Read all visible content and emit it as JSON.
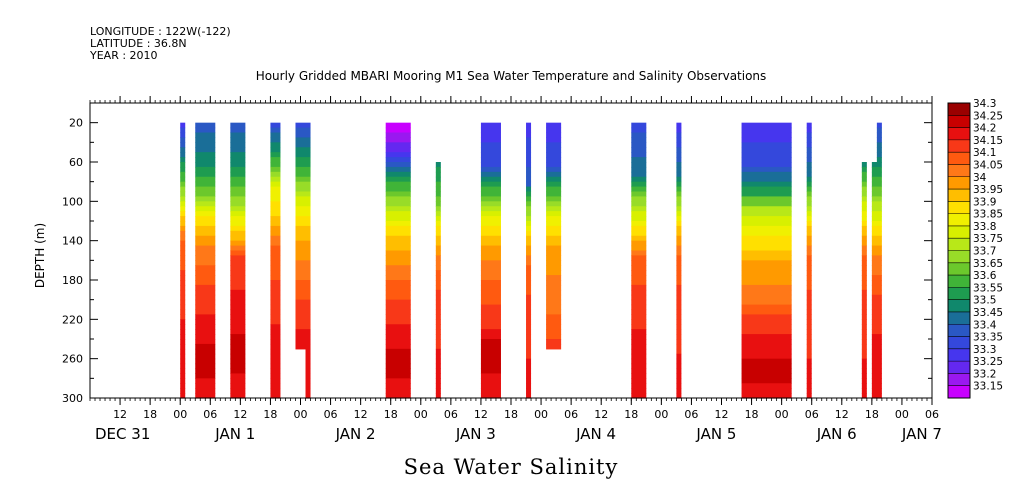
{
  "header": {
    "longitude": "LONGITUDE : 122W(-122)",
    "latitude": "LATITUDE : 36.8N",
    "year": "YEAR : 2010"
  },
  "chart_data": {
    "type": "heatmap",
    "title": "Hourly Gridded MBARI Mooring M1 Sea Water Temperature and Salinity Observations",
    "xlabel": "Sea Water Salinity",
    "ylabel": "DEPTH (m)",
    "ylim": [
      300,
      0
    ],
    "y_ticks": [
      20,
      60,
      100,
      140,
      180,
      220,
      260,
      300
    ],
    "x_range_hours": [
      -18,
      150
    ],
    "hour_ticks": [
      {
        "t": -12,
        "label": "12"
      },
      {
        "t": -6,
        "label": "18"
      },
      {
        "t": 0,
        "label": "00"
      },
      {
        "t": 6,
        "label": "06"
      },
      {
        "t": 12,
        "label": "12"
      },
      {
        "t": 18,
        "label": "18"
      },
      {
        "t": 24,
        "label": "00"
      },
      {
        "t": 30,
        "label": "06"
      },
      {
        "t": 36,
        "label": "12"
      },
      {
        "t": 42,
        "label": "18"
      },
      {
        "t": 48,
        "label": "00"
      },
      {
        "t": 54,
        "label": "06"
      },
      {
        "t": 60,
        "label": "12"
      },
      {
        "t": 66,
        "label": "18"
      },
      {
        "t": 72,
        "label": "00"
      },
      {
        "t": 78,
        "label": "06"
      },
      {
        "t": 84,
        "label": "12"
      },
      {
        "t": 90,
        "label": "18"
      },
      {
        "t": 96,
        "label": "00"
      },
      {
        "t": 102,
        "label": "06"
      },
      {
        "t": 108,
        "label": "12"
      },
      {
        "t": 114,
        "label": "18"
      },
      {
        "t": 120,
        "label": "00"
      },
      {
        "t": 126,
        "label": "06"
      },
      {
        "t": 132,
        "label": "12"
      },
      {
        "t": 138,
        "label": "18"
      },
      {
        "t": 144,
        "label": "00"
      },
      {
        "t": 150,
        "label": "06"
      }
    ],
    "day_labels": [
      {
        "t": -18,
        "label": "DEC 31"
      },
      {
        "t": 6,
        "label": "JAN  1"
      },
      {
        "t": 30,
        "label": "JAN  2"
      },
      {
        "t": 54,
        "label": "JAN  3"
      },
      {
        "t": 78,
        "label": "JAN  4"
      },
      {
        "t": 102,
        "label": "JAN  5"
      },
      {
        "t": 126,
        "label": "JAN  6"
      },
      {
        "t": 143,
        "label": "JAN  7"
      }
    ],
    "colorbar": {
      "levels": [
        "34.3",
        "34.25",
        "34.2",
        "34.15",
        "34.1",
        "34.05",
        "34",
        "33.95",
        "33.9",
        "33.85",
        "33.8",
        "33.75",
        "33.7",
        "33.65",
        "33.6",
        "33.55",
        "33.5",
        "33.45",
        "33.4",
        "33.35",
        "33.3",
        "33.25",
        "33.2",
        "33.15"
      ],
      "colors": [
        "#9a0000",
        "#c80000",
        "#e81010",
        "#f83818",
        "#ff5a10",
        "#ff7818",
        "#ff9a00",
        "#ffbe00",
        "#ffe000",
        "#f0f000",
        "#d8f000",
        "#b8e818",
        "#98dc28",
        "#6cc82c",
        "#40b438",
        "#1e9c50",
        "#10886c",
        "#1a6e98",
        "#2a58c4",
        "#3448dc",
        "#4636ee",
        "#6428f0",
        "#9a18f0",
        "#c800ff"
      ]
    },
    "columns": [
      {
        "t0": 0,
        "t1": 1,
        "top": 20,
        "bottom": 300,
        "profile": [
          [
            20,
            33.3
          ],
          [
            50,
            33.45
          ],
          [
            90,
            33.7
          ],
          [
            120,
            33.95
          ],
          [
            145,
            34.1
          ],
          [
            200,
            34.15
          ],
          [
            240,
            34.2
          ],
          [
            300,
            34.2
          ]
        ]
      },
      {
        "t0": 3,
        "t1": 7,
        "top": 20,
        "bottom": 300,
        "profile": [
          [
            20,
            33.4
          ],
          [
            60,
            33.5
          ],
          [
            90,
            33.65
          ],
          [
            120,
            33.9
          ],
          [
            150,
            34.05
          ],
          [
            200,
            34.15
          ],
          [
            230,
            34.2
          ],
          [
            260,
            34.25
          ],
          [
            300,
            34.2
          ]
        ]
      },
      {
        "t0": 10,
        "t1": 13,
        "top": 20,
        "bottom": 300,
        "profile": [
          [
            20,
            33.4
          ],
          [
            60,
            33.5
          ],
          [
            100,
            33.7
          ],
          [
            135,
            33.95
          ],
          [
            160,
            34.15
          ],
          [
            220,
            34.2
          ],
          [
            250,
            34.25
          ],
          [
            300,
            34.2
          ]
        ]
      },
      {
        "t0": 18,
        "t1": 20,
        "top": 20,
        "bottom": 300,
        "profile": [
          [
            20,
            33.35
          ],
          [
            60,
            33.6
          ],
          [
            90,
            33.85
          ],
          [
            110,
            33.9
          ],
          [
            150,
            34.1
          ],
          [
            210,
            34.15
          ],
          [
            240,
            34.2
          ],
          [
            300,
            34.2
          ]
        ]
      },
      {
        "t0": 23,
        "t1": 26,
        "top": 20,
        "bottom": 250,
        "profile": [
          [
            20,
            33.35
          ],
          [
            70,
            33.6
          ],
          [
            100,
            33.8
          ],
          [
            130,
            33.95
          ],
          [
            170,
            34.05
          ],
          [
            210,
            34.15
          ],
          [
            250,
            34.2
          ]
        ]
      },
      {
        "t0": 25,
        "t1": 26,
        "top": 250,
        "bottom": 300,
        "profile": [
          [
            250,
            34.2
          ],
          [
            300,
            34.2
          ]
        ]
      },
      {
        "t0": 41,
        "t1": 46,
        "top": 20,
        "bottom": 300,
        "profile": [
          [
            20,
            33.15
          ],
          [
            50,
            33.25
          ],
          [
            70,
            33.5
          ],
          [
            100,
            33.7
          ],
          [
            130,
            33.9
          ],
          [
            170,
            34.05
          ],
          [
            210,
            34.15
          ],
          [
            240,
            34.2
          ],
          [
            260,
            34.25
          ],
          [
            300,
            34.2
          ]
        ]
      },
      {
        "t0": 51,
        "t1": 52,
        "top": 60,
        "bottom": 300,
        "profile": [
          [
            60,
            33.5
          ],
          [
            100,
            33.65
          ],
          [
            130,
            33.9
          ],
          [
            160,
            34.05
          ],
          [
            200,
            34.15
          ],
          [
            300,
            34.2
          ]
        ]
      },
      {
        "t0": 60,
        "t1": 64,
        "top": 20,
        "bottom": 300,
        "profile": [
          [
            20,
            33.3
          ],
          [
            60,
            33.35
          ],
          [
            90,
            33.6
          ],
          [
            120,
            33.85
          ],
          [
            150,
            34.0
          ],
          [
            190,
            34.1
          ],
          [
            220,
            34.15
          ],
          [
            250,
            34.25
          ],
          [
            300,
            34.2
          ]
        ]
      },
      {
        "t0": 69,
        "t1": 70,
        "top": 20,
        "bottom": 300,
        "profile": [
          [
            20,
            33.3
          ],
          [
            80,
            33.4
          ],
          [
            110,
            33.7
          ],
          [
            140,
            33.95
          ],
          [
            170,
            34.1
          ],
          [
            220,
            34.15
          ],
          [
            300,
            34.2
          ]
        ]
      },
      {
        "t0": 73,
        "t1": 76,
        "top": 20,
        "bottom": 250,
        "profile": [
          [
            20,
            33.3
          ],
          [
            60,
            33.35
          ],
          [
            90,
            33.6
          ],
          [
            120,
            33.85
          ],
          [
            150,
            34.0
          ],
          [
            200,
            34.05
          ],
          [
            230,
            34.1
          ],
          [
            250,
            34.15
          ]
        ]
      },
      {
        "t0": 90,
        "t1": 93,
        "top": 20,
        "bottom": 300,
        "profile": [
          [
            20,
            33.35
          ],
          [
            70,
            33.45
          ],
          [
            100,
            33.7
          ],
          [
            130,
            33.9
          ],
          [
            160,
            34.1
          ],
          [
            210,
            34.15
          ],
          [
            250,
            34.2
          ],
          [
            300,
            34.2
          ]
        ]
      },
      {
        "t0": 99,
        "t1": 100,
        "top": 20,
        "bottom": 300,
        "profile": [
          [
            20,
            33.3
          ],
          [
            70,
            33.45
          ],
          [
            100,
            33.7
          ],
          [
            130,
            33.95
          ],
          [
            160,
            34.1
          ],
          [
            210,
            34.15
          ],
          [
            300,
            34.2
          ]
        ]
      },
      {
        "t0": 112,
        "t1": 122,
        "top": 20,
        "bottom": 300,
        "profile": [
          [
            20,
            33.3
          ],
          [
            60,
            33.35
          ],
          [
            90,
            33.55
          ],
          [
            110,
            33.75
          ],
          [
            140,
            33.9
          ],
          [
            170,
            34.0
          ],
          [
            200,
            34.05
          ],
          [
            220,
            34.15
          ],
          [
            250,
            34.2
          ],
          [
            270,
            34.25
          ],
          [
            300,
            34.2
          ]
        ]
      },
      {
        "t0": 125,
        "t1": 126,
        "top": 20,
        "bottom": 300,
        "profile": [
          [
            20,
            33.3
          ],
          [
            70,
            33.45
          ],
          [
            100,
            33.7
          ],
          [
            130,
            33.95
          ],
          [
            160,
            34.1
          ],
          [
            220,
            34.15
          ],
          [
            300,
            34.2
          ]
        ]
      },
      {
        "t0": 136,
        "t1": 137,
        "top": 60,
        "bottom": 300,
        "profile": [
          [
            60,
            33.5
          ],
          [
            90,
            33.7
          ],
          [
            130,
            33.95
          ],
          [
            160,
            34.1
          ],
          [
            220,
            34.15
          ],
          [
            300,
            34.2
          ]
        ]
      },
      {
        "t0": 138,
        "t1": 140,
        "top": 60,
        "bottom": 300,
        "profile": [
          [
            60,
            33.5
          ],
          [
            90,
            33.65
          ],
          [
            130,
            33.9
          ],
          [
            160,
            34.05
          ],
          [
            210,
            34.15
          ],
          [
            260,
            34.2
          ],
          [
            300,
            34.2
          ]
        ]
      },
      {
        "t0": 139,
        "t1": 140,
        "top": 20,
        "bottom": 60,
        "profile": [
          [
            20,
            33.35
          ],
          [
            60,
            33.5
          ]
        ]
      }
    ]
  }
}
